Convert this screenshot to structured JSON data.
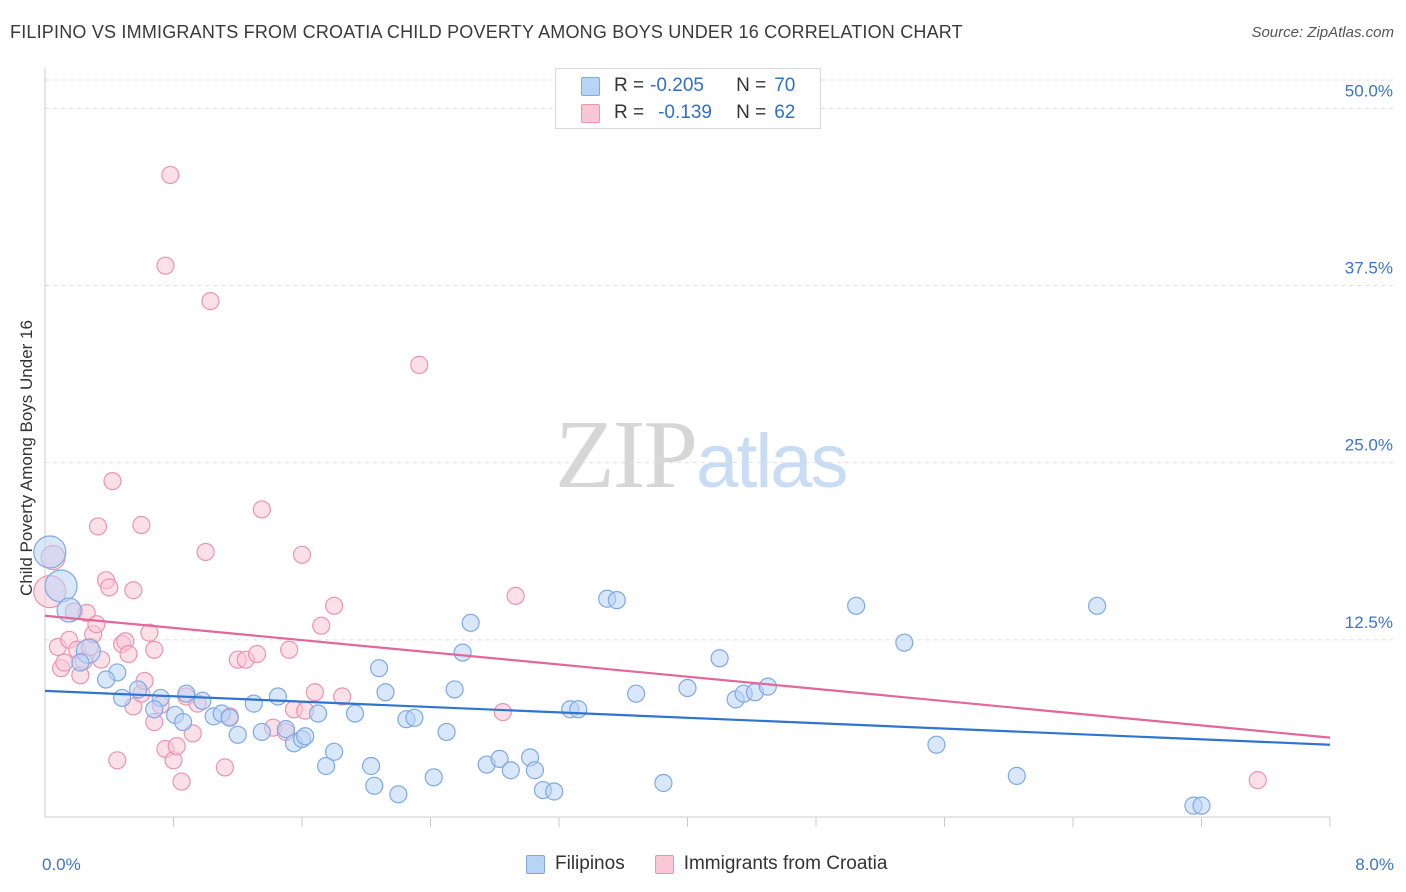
{
  "title": "FILIPINO VS IMMIGRANTS FROM CROATIA CHILD POVERTY AMONG BOYS UNDER 16 CORRELATION CHART",
  "source": "Source: ZipAtlas.com",
  "watermark": {
    "zip": "ZIP",
    "atlas": "atlas"
  },
  "legend_top": {
    "rows": [
      {
        "r_label": "R =",
        "r_value": "-0.205",
        "n_label": "N =",
        "n_value": "70"
      },
      {
        "r_label": "R =",
        "r_value": "-0.139",
        "n_label": "N =",
        "n_value": "62"
      }
    ]
  },
  "legend_bottom": {
    "filipinos": "Filipinos",
    "croatia": "Immigrants from Croatia"
  },
  "colors": {
    "blue_fill": "#b9d3f5",
    "blue_stroke": "#7ea9e3",
    "blue_line": "#2f75cd",
    "pink_fill": "#f9c6d6",
    "pink_stroke": "#ec93b2",
    "pink_line": "#e0689a",
    "grid": "#dddddd",
    "tick_label": "#3d74c5"
  },
  "chart_data": {
    "type": "scatter",
    "title": "FILIPINO VS IMMIGRANTS FROM CROATIA CHILD POVERTY AMONG BOYS UNDER 16 CORRELATION CHART",
    "xlabel": "",
    "ylabel": "Child Poverty Among Boys Under 16",
    "xlim": [
      0,
      8
    ],
    "ylim": [
      0,
      52
    ],
    "x_tick_labels": [
      {
        "value": 0,
        "label": "0.0%"
      },
      {
        "value": 8,
        "label": "8.0%"
      }
    ],
    "y_tick_labels": [
      {
        "value": 12.5,
        "label": "12.5%"
      },
      {
        "value": 25,
        "label": "25.0%"
      },
      {
        "value": 37.5,
        "label": "37.5%"
      },
      {
        "value": 50,
        "label": "50.0%"
      }
    ],
    "series": [
      {
        "name": "Filipinos",
        "r": -0.205,
        "n": 70,
        "trend": [
          [
            0,
            8.9
          ],
          [
            8,
            5.1
          ]
        ],
        "points": [
          [
            0.03,
            18.7,
            "L"
          ],
          [
            0.1,
            16.3,
            "L"
          ],
          [
            0.15,
            14.6,
            "M"
          ],
          [
            0.27,
            11.7,
            "M"
          ],
          [
            0.22,
            10.9,
            "S"
          ],
          [
            0.45,
            10.2,
            "S"
          ],
          [
            0.38,
            9.7,
            "S"
          ],
          [
            0.48,
            8.4,
            "S"
          ],
          [
            0.58,
            9.0,
            "S"
          ],
          [
            0.72,
            8.4,
            "S"
          ],
          [
            0.88,
            8.7,
            "S"
          ],
          [
            0.98,
            8.2,
            "S"
          ],
          [
            0.68,
            7.6,
            "S"
          ],
          [
            0.81,
            7.2,
            "S"
          ],
          [
            0.86,
            6.7,
            "S"
          ],
          [
            1.05,
            7.1,
            "S"
          ],
          [
            1.1,
            7.3,
            "S"
          ],
          [
            1.15,
            7.0,
            "S"
          ],
          [
            1.2,
            5.8,
            "S"
          ],
          [
            1.3,
            8.0,
            "S"
          ],
          [
            1.35,
            6.0,
            "S"
          ],
          [
            1.45,
            8.5,
            "S"
          ],
          [
            1.5,
            6.2,
            "S"
          ],
          [
            1.55,
            5.2,
            "S"
          ],
          [
            1.6,
            5.5,
            "S"
          ],
          [
            1.62,
            5.7,
            "S"
          ],
          [
            1.7,
            7.3,
            "S"
          ],
          [
            1.75,
            3.6,
            "S"
          ],
          [
            1.8,
            4.6,
            "S"
          ],
          [
            1.93,
            7.3,
            "S"
          ],
          [
            2.03,
            3.6,
            "S"
          ],
          [
            2.05,
            2.2,
            "S"
          ],
          [
            2.08,
            10.5,
            "S"
          ],
          [
            2.12,
            8.8,
            "S"
          ],
          [
            2.2,
            1.6,
            "S"
          ],
          [
            2.25,
            6.9,
            "S"
          ],
          [
            2.3,
            7.0,
            "S"
          ],
          [
            2.42,
            2.8,
            "S"
          ],
          [
            2.5,
            6.0,
            "S"
          ],
          [
            2.55,
            9.0,
            "S"
          ],
          [
            2.6,
            11.6,
            "S"
          ],
          [
            2.65,
            13.7,
            "S"
          ],
          [
            2.75,
            3.7,
            "S"
          ],
          [
            2.83,
            4.1,
            "S"
          ],
          [
            2.9,
            3.3,
            "S"
          ],
          [
            3.02,
            4.2,
            "S"
          ],
          [
            3.05,
            3.3,
            "S"
          ],
          [
            3.1,
            1.9,
            "S"
          ],
          [
            3.17,
            1.8,
            "S"
          ],
          [
            3.27,
            7.6,
            "S"
          ],
          [
            3.32,
            7.6,
            "S"
          ],
          [
            3.5,
            15.4,
            "S"
          ],
          [
            3.56,
            15.3,
            "S"
          ],
          [
            3.68,
            8.7,
            "S"
          ],
          [
            3.85,
            2.4,
            "S"
          ],
          [
            4.0,
            9.1,
            "S"
          ],
          [
            4.2,
            11.2,
            "S"
          ],
          [
            4.3,
            8.3,
            "S"
          ],
          [
            4.35,
            8.7,
            "S"
          ],
          [
            4.42,
            8.8,
            "S"
          ],
          [
            4.5,
            9.2,
            "S"
          ],
          [
            5.05,
            14.9,
            "S"
          ],
          [
            5.35,
            12.3,
            "S"
          ],
          [
            5.55,
            5.1,
            "S"
          ],
          [
            6.05,
            2.9,
            "S"
          ],
          [
            6.55,
            14.9,
            "S"
          ],
          [
            7.15,
            0.8,
            "S"
          ],
          [
            7.2,
            0.8,
            "S"
          ]
        ]
      },
      {
        "name": "Immigrants from Croatia",
        "r": -0.139,
        "n": 62,
        "trend": [
          [
            0,
            14.2
          ],
          [
            8,
            5.6
          ]
        ],
        "points": [
          [
            0.03,
            15.9,
            "L"
          ],
          [
            0.05,
            18.3,
            "M"
          ],
          [
            0.08,
            12.0,
            "S"
          ],
          [
            0.1,
            10.5,
            "S"
          ],
          [
            0.12,
            10.9,
            "S"
          ],
          [
            0.15,
            12.5,
            "S"
          ],
          [
            0.18,
            14.5,
            "S"
          ],
          [
            0.2,
            11.8,
            "S"
          ],
          [
            0.22,
            10.0,
            "S"
          ],
          [
            0.24,
            11.0,
            "S"
          ],
          [
            0.26,
            14.4,
            "S"
          ],
          [
            0.28,
            12.0,
            "S"
          ],
          [
            0.3,
            12.9,
            "S"
          ],
          [
            0.32,
            13.6,
            "S"
          ],
          [
            0.35,
            11.1,
            "S"
          ],
          [
            0.33,
            20.5,
            "S"
          ],
          [
            0.38,
            16.7,
            "S"
          ],
          [
            0.4,
            16.2,
            "S"
          ],
          [
            0.42,
            23.7,
            "S"
          ],
          [
            0.45,
            4.0,
            "S"
          ],
          [
            0.48,
            12.2,
            "S"
          ],
          [
            0.5,
            12.4,
            "S"
          ],
          [
            0.52,
            11.5,
            "S"
          ],
          [
            0.55,
            7.8,
            "S"
          ],
          [
            0.55,
            16.0,
            "S"
          ],
          [
            0.6,
            8.7,
            "S"
          ],
          [
            0.6,
            20.6,
            "S"
          ],
          [
            0.62,
            9.6,
            "S"
          ],
          [
            0.65,
            13.0,
            "S"
          ],
          [
            0.68,
            11.8,
            "S"
          ],
          [
            0.68,
            6.7,
            "S"
          ],
          [
            0.72,
            7.9,
            "S"
          ],
          [
            0.75,
            4.8,
            "S"
          ],
          [
            0.75,
            38.9,
            "S"
          ],
          [
            0.78,
            45.3,
            "S"
          ],
          [
            0.8,
            4.0,
            "S"
          ],
          [
            0.82,
            5.0,
            "S"
          ],
          [
            0.85,
            2.5,
            "S"
          ],
          [
            0.88,
            8.5,
            "S"
          ],
          [
            0.92,
            5.9,
            "S"
          ],
          [
            0.95,
            8.0,
            "S"
          ],
          [
            1.0,
            18.7,
            "S"
          ],
          [
            1.03,
            36.4,
            "S"
          ],
          [
            1.12,
            3.5,
            "S"
          ],
          [
            1.15,
            7.1,
            "S"
          ],
          [
            1.2,
            11.1,
            "S"
          ],
          [
            1.25,
            11.1,
            "S"
          ],
          [
            1.32,
            11.5,
            "S"
          ],
          [
            1.35,
            21.7,
            "S"
          ],
          [
            1.42,
            6.3,
            "S"
          ],
          [
            1.5,
            6.0,
            "S"
          ],
          [
            1.52,
            11.8,
            "S"
          ],
          [
            1.55,
            7.6,
            "S"
          ],
          [
            1.6,
            18.5,
            "S"
          ],
          [
            1.62,
            7.5,
            "S"
          ],
          [
            1.68,
            8.8,
            "S"
          ],
          [
            1.72,
            13.5,
            "S"
          ],
          [
            1.8,
            14.9,
            "S"
          ],
          [
            1.85,
            8.5,
            "S"
          ],
          [
            2.33,
            31.9,
            "S"
          ],
          [
            2.85,
            7.4,
            "S"
          ],
          [
            2.93,
            15.6,
            "S"
          ],
          [
            7.55,
            2.6,
            "S"
          ]
        ]
      }
    ]
  }
}
